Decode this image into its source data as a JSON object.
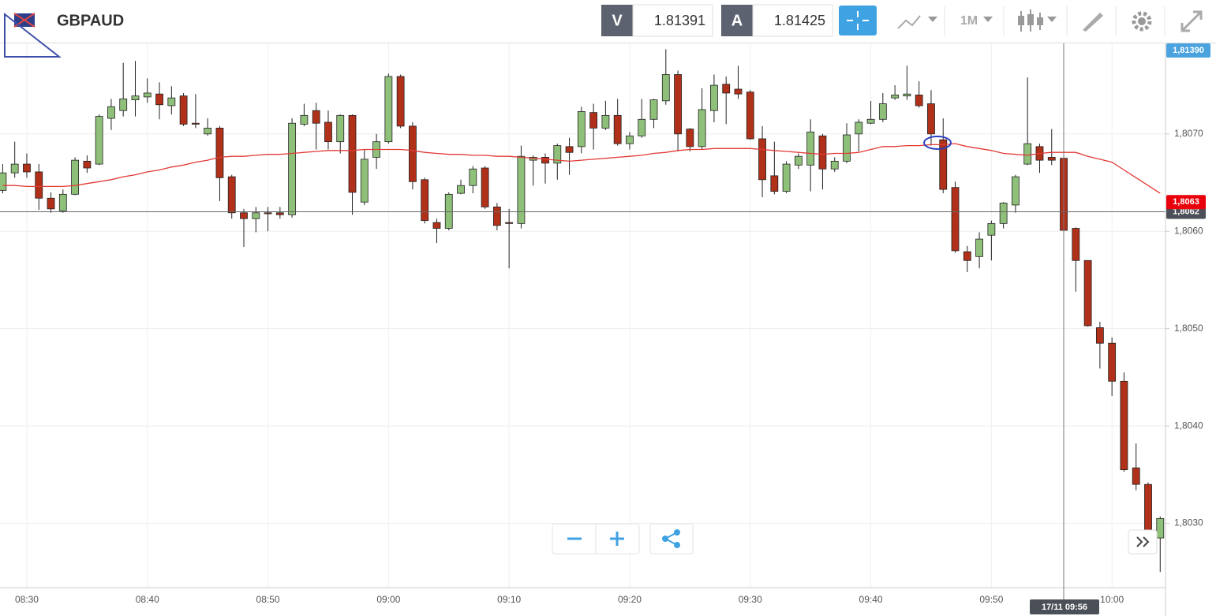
{
  "header": {
    "symbol": "GBPAUD",
    "bid_label": "V",
    "bid": "1.81391",
    "ask_label": "A",
    "ask": "1.81425",
    "timeframe": "1M"
  },
  "chart_data": {
    "type": "candlestick",
    "categories": [
      null,
      null,
      "08:30",
      null,
      null,
      null,
      null,
      null,
      null,
      null,
      null,
      null,
      "08:40",
      null,
      null,
      null,
      null,
      null,
      null,
      null,
      null,
      null,
      "08:50",
      null,
      null,
      null,
      null,
      null,
      null,
      null,
      null,
      null,
      "09:00",
      null,
      null,
      null,
      null,
      null,
      null,
      null,
      null,
      null,
      "09:10",
      null,
      null,
      null,
      null,
      null,
      null,
      null,
      null,
      null,
      "09:20",
      null,
      null,
      null,
      null,
      null,
      null,
      null,
      null,
      null,
      "09:30",
      null,
      null,
      null,
      null,
      null,
      null,
      null,
      null,
      null,
      "09:40",
      null,
      null,
      null,
      null,
      null,
      null,
      null,
      null,
      null,
      "09:50",
      null,
      null,
      null,
      null,
      null,
      null,
      null,
      null,
      null,
      "10:00",
      null,
      null,
      null,
      null
    ],
    "candles": {
      "open": [
        1.80642,
        1.8066,
        1.80669,
        1.80661,
        1.80634,
        1.80621,
        1.80638,
        1.80672,
        1.80669,
        1.80716,
        1.80724,
        1.80735,
        1.80738,
        1.80741,
        1.80729,
        1.80739,
        1.80711,
        1.807,
        1.80706,
        1.80656,
        1.80619,
        1.80613,
        1.80619,
        1.80619,
        1.80617,
        1.8071,
        1.80724,
        1.80712,
        1.80692,
        1.80719,
        1.8063,
        1.80676,
        1.80692,
        1.80759,
        1.80708,
        1.80653,
        1.80609,
        1.80603,
        1.80639,
        1.80647,
        1.80665,
        1.80625,
        1.80609,
        1.80608,
        1.80673,
        1.80676,
        1.8067,
        1.80687,
        1.80687,
        1.80722,
        1.80706,
        1.80719,
        1.8069,
        1.80698,
        1.80715,
        1.80734,
        1.80761,
        1.80705,
        1.80687,
        1.80724,
        1.80751,
        1.80746,
        1.80743,
        1.80695,
        1.80657,
        1.80641,
        1.80668,
        1.80668,
        1.80698,
        1.80664,
        1.80672,
        1.807,
        1.80711,
        1.80715,
        1.80737,
        1.80739,
        1.8074,
        1.80731,
        1.80694,
        1.80645,
        1.80579,
        1.80574,
        1.80596,
        1.80608,
        1.80627,
        1.80669,
        1.80687,
        1.80676,
        1.80675,
        1.80603,
        1.8057,
        1.80501,
        1.80485,
        1.80446,
        1.80357,
        1.8034,
        1.80285
      ],
      "high": [
        1.80669,
        1.80692,
        1.8068,
        1.80669,
        1.8064,
        1.80643,
        1.80676,
        1.80678,
        1.8072,
        1.80736,
        1.80773,
        1.80775,
        1.80757,
        1.80753,
        1.80749,
        1.80742,
        1.80741,
        1.80716,
        1.80708,
        1.80658,
        1.80623,
        1.80625,
        1.80625,
        1.80625,
        1.80716,
        1.80731,
        1.80732,
        1.80724,
        1.8072,
        1.8072,
        1.80684,
        1.807,
        1.80762,
        1.80761,
        1.80712,
        1.80655,
        1.80613,
        1.8064,
        1.80653,
        1.80667,
        1.80667,
        1.80629,
        1.80623,
        1.80688,
        1.80678,
        1.8068,
        1.8069,
        1.80696,
        1.80728,
        1.80731,
        1.80734,
        1.80736,
        1.80702,
        1.80736,
        1.80736,
        1.80787,
        1.80765,
        1.80706,
        1.80747,
        1.80761,
        1.80759,
        1.8077,
        1.80745,
        1.80708,
        1.80692,
        1.80672,
        1.8068,
        1.80715,
        1.807,
        1.80676,
        1.80711,
        1.80715,
        1.80734,
        1.80742,
        1.8075,
        1.8077,
        1.80754,
        1.80745,
        1.80716,
        1.80651,
        1.80585,
        1.80599,
        1.80611,
        1.8063,
        1.80658,
        1.80758,
        1.8069,
        1.80705,
        1.80677,
        1.80604,
        1.8057,
        1.80507,
        1.80491,
        1.80455,
        1.80382,
        1.80342,
        1.80307
      ],
      "low": [
        1.80639,
        1.80655,
        1.80655,
        1.80622,
        1.80619,
        1.80619,
        1.80637,
        1.8066,
        1.80668,
        1.80704,
        1.80718,
        1.80718,
        1.80732,
        1.80715,
        1.8072,
        1.80708,
        1.80706,
        1.80698,
        1.80631,
        1.80613,
        1.80584,
        1.80599,
        1.806,
        1.80613,
        1.80614,
        1.80708,
        1.80684,
        1.80684,
        1.8068,
        1.80617,
        1.80627,
        1.80664,
        1.8069,
        1.80706,
        1.80643,
        1.80608,
        1.80588,
        1.80601,
        1.80638,
        1.80639,
        1.80623,
        1.80601,
        1.80562,
        1.80603,
        1.80647,
        1.80649,
        1.80653,
        1.80658,
        1.8068,
        1.80684,
        1.80704,
        1.80688,
        1.80684,
        1.80696,
        1.80706,
        1.8073,
        1.80682,
        1.80682,
        1.80684,
        1.80712,
        1.8071,
        1.80736,
        1.80694,
        1.80635,
        1.80638,
        1.80639,
        1.80664,
        1.80641,
        1.80643,
        1.80661,
        1.8067,
        1.80682,
        1.8071,
        1.80712,
        1.80735,
        1.80735,
        1.80727,
        1.80688,
        1.80639,
        1.80578,
        1.80558,
        1.80562,
        1.8057,
        1.80603,
        1.80619,
        1.80668,
        1.8066,
        1.80668,
        1.806,
        1.80538,
        1.80502,
        1.80459,
        1.80431,
        1.80353,
        1.80334,
        1.80279,
        1.8025
      ],
      "close": [
        1.8066,
        1.80669,
        1.80661,
        1.80634,
        1.80623,
        1.80638,
        1.80673,
        1.80665,
        1.80718,
        1.80728,
        1.80736,
        1.80739,
        1.80742,
        1.8073,
        1.80737,
        1.8071,
        1.8071,
        1.80706,
        1.80655,
        1.80619,
        1.80613,
        1.80619,
        1.80618,
        1.80617,
        1.80711,
        1.80719,
        1.80711,
        1.80692,
        1.80719,
        1.8064,
        1.80674,
        1.80692,
        1.80759,
        1.80708,
        1.80651,
        1.80611,
        1.80603,
        1.80638,
        1.80647,
        1.80664,
        1.80625,
        1.80606,
        1.80608,
        1.80677,
        1.80676,
        1.8067,
        1.80688,
        1.80681,
        1.80723,
        1.80706,
        1.80719,
        1.8069,
        1.80698,
        1.80715,
        1.80735,
        1.80761,
        1.807,
        1.80687,
        1.80725,
        1.8075,
        1.80742,
        1.80741,
        1.80695,
        1.80653,
        1.80641,
        1.80669,
        1.80677,
        1.80702,
        1.80664,
        1.80672,
        1.80699,
        1.80712,
        1.80715,
        1.80731,
        1.8074,
        1.80741,
        1.80729,
        1.807,
        1.80643,
        1.8058,
        1.8057,
        1.80592,
        1.80608,
        1.80629,
        1.80656,
        1.8069,
        1.80673,
        1.80673,
        1.80601,
        1.8057,
        1.80503,
        1.80485,
        1.80446,
        1.80355,
        1.8034,
        1.80293,
        1.80305
      ]
    },
    "up_color": "#8fc07a",
    "down_color": "#b03019",
    "ma": {
      "color": "#e23a35",
      "values": [
        1.80647,
        1.80647,
        1.80646,
        1.80646,
        1.80646,
        1.80646,
        1.80647,
        1.80649,
        1.80651,
        1.80653,
        1.80656,
        1.80658,
        1.80661,
        1.80663,
        1.80666,
        1.80668,
        1.80671,
        1.80673,
        1.80676,
        1.80677,
        1.80677,
        1.80678,
        1.80679,
        1.80679,
        1.8068,
        1.80681,
        1.80682,
        1.80683,
        1.80683,
        1.80683,
        1.80684,
        1.80684,
        1.80684,
        1.80684,
        1.80683,
        1.80681,
        1.8068,
        1.80679,
        1.80679,
        1.80678,
        1.80678,
        1.80677,
        1.80677,
        1.80676,
        1.80675,
        1.80674,
        1.80673,
        1.80672,
        1.80673,
        1.80674,
        1.80675,
        1.80676,
        1.80677,
        1.80678,
        1.8068,
        1.80681,
        1.80683,
        1.80684,
        1.80684,
        1.80685,
        1.80685,
        1.80685,
        1.80685,
        1.80684,
        1.80683,
        1.80682,
        1.80681,
        1.8068,
        1.80679,
        1.8068,
        1.8068,
        1.80681,
        1.80684,
        1.80687,
        1.80687,
        1.80688,
        1.80688,
        1.80689,
        1.80689,
        1.8069,
        1.80687,
        1.80685,
        1.80683,
        1.8068,
        1.80679,
        1.80678,
        1.8068,
        1.80681,
        1.80681,
        1.80681,
        1.80677,
        1.80674,
        1.80671,
        1.80663,
        1.80655,
        1.80647,
        1.80639
      ]
    },
    "ylim": [
      1.80234,
      1.80793
    ],
    "yticks": [
      {
        "value": 1.803,
        "label": "1,8030"
      },
      {
        "value": 1.804,
        "label": "1,8040"
      },
      {
        "value": 1.805,
        "label": "1,8050"
      },
      {
        "value": 1.806,
        "label": "1,8060"
      },
      {
        "value": 1.807,
        "label": "1,8070"
      }
    ],
    "grid": true,
    "top_tag": "1,81390",
    "ask_tag": {
      "value": 1.8063,
      "label": "1,8063",
      "color": "#e8000b"
    },
    "last_price": {
      "value": 1.8062,
      "label": "1,8062",
      "color": "#4b4f57"
    },
    "crosshair_label": "17/11 09:56"
  }
}
